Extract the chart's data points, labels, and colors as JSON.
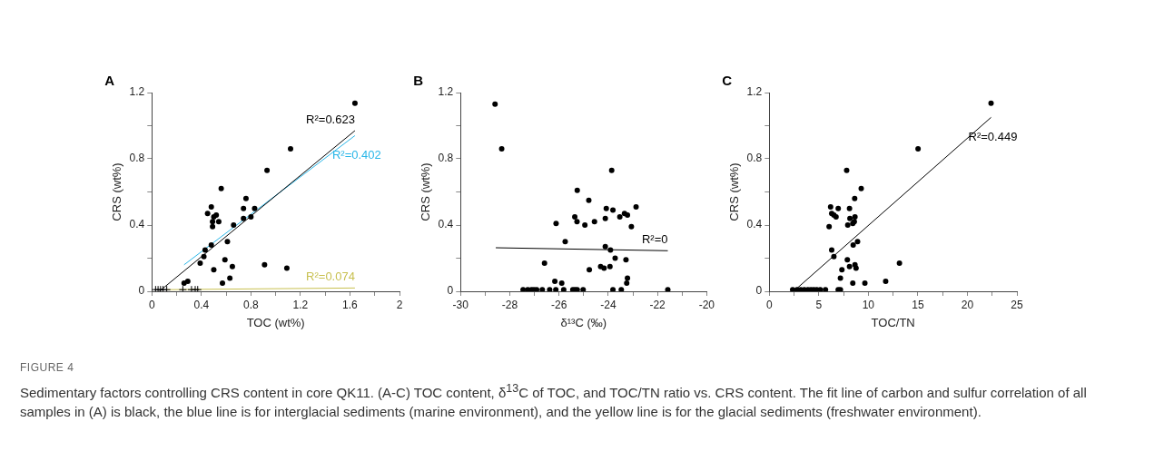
{
  "chart_data": [
    {
      "type": "scatter",
      "title": "A",
      "xlabel": "TOC (wt%)",
      "ylabel": "CRS (wt%)",
      "xlim": [
        0,
        2
      ],
      "ylim": [
        0,
        1.2
      ],
      "xticks": [
        0,
        {
          "value": 0.2,
          "label": null
        },
        0.4,
        {
          "value": 0.6,
          "label": null
        },
        0.8,
        {
          "value": 1.0,
          "label": null
        },
        1.2,
        {
          "value": 1.4,
          "label": null
        },
        1.6,
        {
          "value": 1.8,
          "label": null
        },
        2
      ],
      "yticks": [
        0,
        {
          "value": 0.2,
          "label": null
        },
        0.4,
        {
          "value": 0.6,
          "label": null
        },
        0.8,
        {
          "value": 1.0,
          "label": null
        },
        1.2
      ],
      "grid": false,
      "legend": false,
      "series": [
        {
          "type": "scatter",
          "marker": "circle",
          "color": "#000000",
          "x": [
            1.64,
            1.12,
            0.93,
            0.56,
            0.76,
            0.48,
            0.74,
            0.83,
            0.45,
            0.52,
            0.5,
            0.74,
            0.8,
            0.54,
            0.49,
            0.49,
            0.66,
            0.61,
            0.48,
            0.43,
            0.42,
            0.39,
            0.59,
            0.65,
            0.5,
            0.91,
            1.09,
            0.63,
            0.57,
            0.29,
            0.26
          ],
          "values": [
            1.135,
            0.86,
            0.73,
            0.62,
            0.56,
            0.51,
            0.5,
            0.5,
            0.47,
            0.46,
            0.45,
            0.44,
            0.45,
            0.42,
            0.42,
            0.39,
            0.4,
            0.3,
            0.28,
            0.25,
            0.21,
            0.17,
            0.19,
            0.15,
            0.13,
            0.16,
            0.14,
            0.08,
            0.05,
            0.06,
            0.05
          ]
        },
        {
          "type": "scatter",
          "marker": "cross",
          "color": "#000000",
          "x": [
            0.03,
            0.05,
            0.07,
            0.09,
            0.12,
            0.25,
            0.32,
            0.35,
            0.37
          ],
          "values": [
            0.01,
            0.01,
            0.01,
            0.01,
            0.01,
            0.01,
            0.01,
            0.01,
            0.01
          ]
        },
        {
          "type": "line",
          "name": "R²=0.623",
          "color": "#000000",
          "x": [
            0.06,
            1.64
          ],
          "values": [
            0,
            0.97
          ]
        },
        {
          "type": "line",
          "name": "R²=0.402",
          "color": "#29b6e8",
          "x": [
            0.26,
            1.64
          ],
          "values": [
            0.16,
            0.94
          ]
        },
        {
          "type": "line",
          "name": "R²=0.074",
          "color": "#c8c050",
          "x": [
            0.12,
            1.64
          ],
          "values": [
            0.01,
            0.02
          ]
        }
      ],
      "annotations": [
        "FIGURE 4",
        "Sedimentary factors controlling CRS content in core QK11. (A-C) TOC content, δ$^{13}$C of TOC, and TOC/TN ratio vs. CRS content. The fit line of carbon and sulfur correlation of all samples in (A) is black, the blue line is for interglacial sediments (marine environment), and the yellow line is for the glacial sediments (freshwater environment)."
      ]
    },
    {
      "type": "scatter",
      "title": "B",
      "xlabel": "δ¹³C (‰)",
      "ylabel": "CRS (wt%)",
      "xlim": [
        -30,
        -20
      ],
      "ylim": [
        0,
        1.2
      ],
      "xticks": [
        -30,
        {
          "value": -29,
          "label": null
        },
        -28,
        {
          "value": -27,
          "label": null
        },
        -26,
        {
          "value": -25,
          "label": null
        },
        -24,
        {
          "value": -23,
          "label": null
        },
        -22,
        {
          "value": -21,
          "label": null
        },
        -20
      ],
      "yticks": [
        0,
        {
          "value": 0.2,
          "label": null
        },
        0.4,
        {
          "value": 0.6,
          "label": null
        },
        0.8,
        {
          "value": 1.0,
          "label": null
        },
        1.2
      ],
      "grid": false,
      "legend": false,
      "series": [
        {
          "type": "scatter",
          "marker": "circle",
          "color": "#000000",
          "x": [
            -28.6,
            -28.33,
            -23.86,
            -25.26,
            -24.79,
            -22.87,
            -24.08,
            -23.81,
            -25.36,
            -24.12,
            -23.34,
            -23.22,
            -23.53,
            -23.06,
            -26.12,
            -25.27,
            -24.95,
            -24.56,
            -25.75,
            -24.12,
            -23.91,
            -23.72,
            -23.28,
            -26.59,
            -24.31,
            -24.17,
            -23.93,
            -24.77,
            -23.22,
            -23.25,
            -26.17,
            -25.89,
            -27.46,
            -27.27,
            -27.12,
            -27.02,
            -26.91,
            -26.68,
            -26.38,
            -26.13,
            -25.81,
            -25.44,
            -25.35,
            -25.26,
            -25.02,
            -23.81,
            -23.47,
            -21.58
          ],
          "values": [
            1.13,
            0.86,
            0.73,
            0.61,
            0.55,
            0.51,
            0.5,
            0.49,
            0.45,
            0.44,
            0.47,
            0.46,
            0.45,
            0.39,
            0.41,
            0.42,
            0.4,
            0.42,
            0.3,
            0.27,
            0.25,
            0.2,
            0.19,
            0.17,
            0.15,
            0.14,
            0.15,
            0.13,
            0.08,
            0.05,
            0.06,
            0.05,
            0.01,
            0.01,
            0.01,
            0.01,
            0.01,
            0.01,
            0.01,
            0.01,
            0.01,
            0.01,
            0.01,
            0.01,
            0.01,
            0.01,
            0.01,
            0.01
          ]
        },
        {
          "type": "line",
          "name": "R²=0",
          "color": "#000000",
          "x": [
            -28.57,
            -21.58
          ],
          "values": [
            0.263,
            0.245
          ]
        }
      ]
    },
    {
      "type": "scatter",
      "title": "C",
      "xlabel": "TOC/TN",
      "ylabel": "CRS (wt%)",
      "xlim": [
        0,
        25
      ],
      "ylim": [
        0,
        1.2
      ],
      "xticks": [
        0,
        {
          "value": 2.5,
          "label": null
        },
        5,
        {
          "value": 7.5,
          "label": null
        },
        10,
        {
          "value": 12.5,
          "label": null
        },
        15,
        {
          "value": 17.5,
          "label": null
        },
        20,
        {
          "value": 22.5,
          "label": null
        },
        25
      ],
      "yticks": [
        0,
        {
          "value": 0.2,
          "label": null
        },
        0.4,
        {
          "value": 0.6,
          "label": null
        },
        0.8,
        {
          "value": 1.0,
          "label": null
        },
        1.2
      ],
      "grid": false,
      "legend": false,
      "series": [
        {
          "type": "scatter",
          "marker": "circle",
          "color": "#000000",
          "x": [
            22.39,
            15.02,
            7.81,
            9.28,
            8.62,
            6.19,
            8.1,
            6.96,
            6.3,
            6.74,
            6.52,
            8.65,
            8.14,
            6.04,
            7.92,
            8.43,
            8.58,
            8.91,
            8.47,
            6.3,
            6.52,
            7.88,
            8.1,
            8.65,
            8.76,
            7.33,
            13.14,
            7.18,
            8.43,
            9.65,
            11.75,
            2.36,
            2.8,
            3.17,
            3.54,
            3.9,
            4.2,
            4.49,
            4.79,
            5.15,
            5.67,
            6.96,
            7.18
          ],
          "values": [
            1.135,
            0.86,
            0.73,
            0.62,
            0.56,
            0.51,
            0.5,
            0.5,
            0.47,
            0.45,
            0.46,
            0.45,
            0.44,
            0.39,
            0.4,
            0.41,
            0.42,
            0.3,
            0.28,
            0.25,
            0.21,
            0.19,
            0.15,
            0.16,
            0.14,
            0.13,
            0.17,
            0.08,
            0.05,
            0.05,
            0.06,
            0.01,
            0.01,
            0.01,
            0.01,
            0.01,
            0.01,
            0.01,
            0.01,
            0.01,
            0.01,
            0.01,
            0.01
          ]
        },
        {
          "type": "line",
          "name": "R²=0.449",
          "color": "#000000",
          "x": [
            2.72,
            22.39
          ],
          "values": [
            0.014,
            1.05
          ]
        }
      ]
    }
  ]
}
